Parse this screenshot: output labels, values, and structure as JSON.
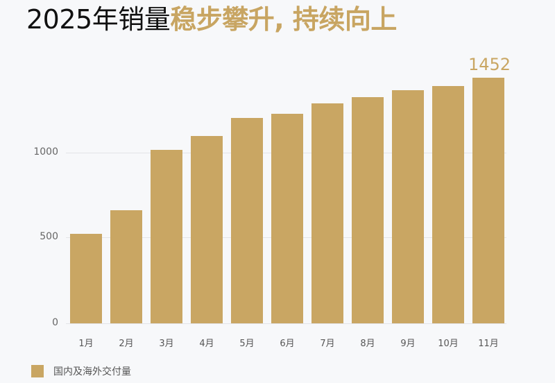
{
  "title": {
    "plain": "2025年销量",
    "highlight": "稳步攀升, 持续向上"
  },
  "colors": {
    "bar": "#c9a663",
    "title_highlight": "#c8a562",
    "grid": "#e3e4e7",
    "background": "#f7f8fa"
  },
  "yaxis": {
    "ticks": [
      "1000",
      "500",
      "0"
    ]
  },
  "annotation": {
    "label": "1452"
  },
  "legend": {
    "label": "国内及海外交付量"
  },
  "chart_data": {
    "type": "bar",
    "title": "2025年销量稳步攀升, 持续向上",
    "categories": [
      "1月",
      "2月",
      "3月",
      "4月",
      "5月",
      "6月",
      "7月",
      "8月",
      "9月",
      "10月",
      "11月"
    ],
    "series": [
      {
        "name": "国内及海外交付量",
        "values": [
          530,
          670,
          1025,
          1110,
          1215,
          1240,
          1300,
          1340,
          1380,
          1405,
          1452
        ]
      }
    ],
    "xlabel": "",
    "ylabel": "",
    "yticks": [
      0,
      500,
      1000
    ],
    "ylim": [
      0,
      1500
    ],
    "grid": true,
    "legend_position": "bottom-left",
    "annotations": [
      {
        "category": "11月",
        "text": "1452"
      }
    ]
  }
}
